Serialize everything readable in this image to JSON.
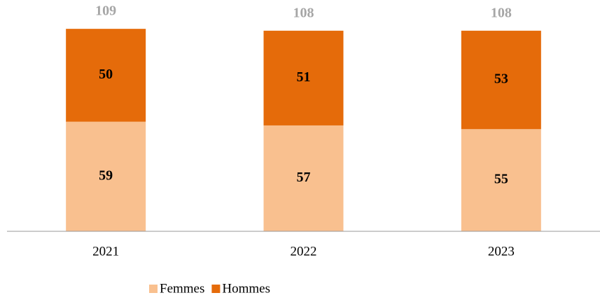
{
  "chart_data": {
    "type": "stacked_bar",
    "categories": [
      "2021",
      "2022",
      "2023"
    ],
    "series": [
      {
        "name": "Femmes",
        "color": "#f9c08f",
        "values": [
          59,
          57,
          55
        ]
      },
      {
        "name": "Hommes",
        "color": "#e56b0a",
        "values": [
          50,
          51,
          53
        ]
      }
    ],
    "totals": [
      109,
      108,
      108
    ],
    "ylim": [
      0,
      120
    ],
    "legend": "bottom"
  }
}
